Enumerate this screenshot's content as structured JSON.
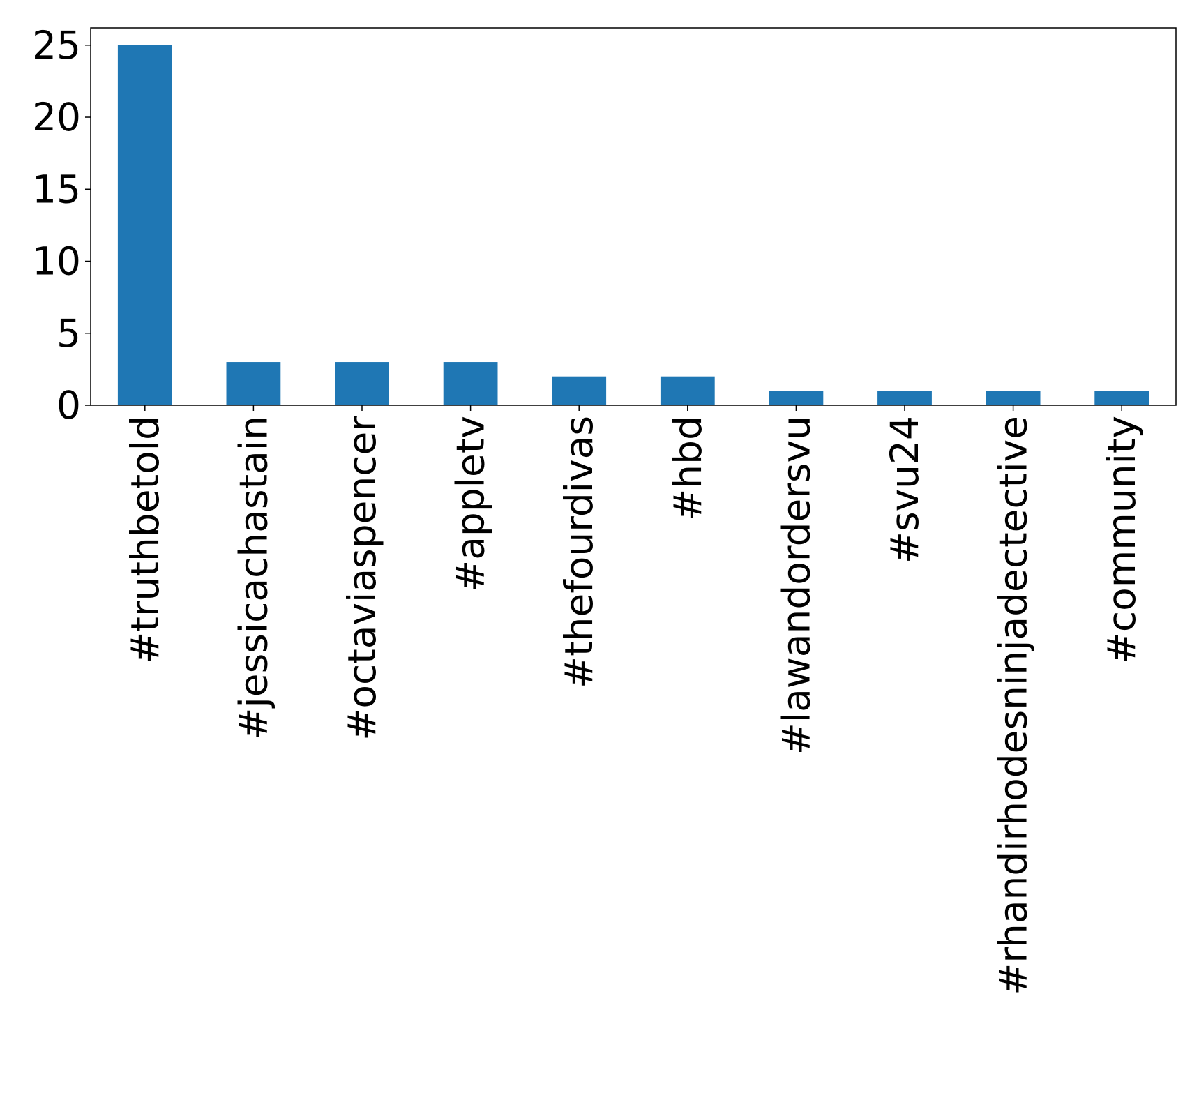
{
  "chart_data": {
    "type": "bar",
    "categories": [
      "#truthbetold",
      "#jessicachastain",
      "#octaviaspencer",
      "#appletv",
      "#thefourdivas",
      "#hbd",
      "#lawandordersvu",
      "#svu24",
      "#rhandirhodesninjadectective",
      "#community"
    ],
    "values": [
      25,
      3,
      3,
      3,
      2,
      2,
      1,
      1,
      1,
      1
    ],
    "ylim": [
      0,
      26.2
    ],
    "yticks": [
      0,
      5,
      10,
      15,
      20,
      25
    ],
    "grid": false,
    "legend": "none",
    "bar_color": "#1f77b4"
  }
}
